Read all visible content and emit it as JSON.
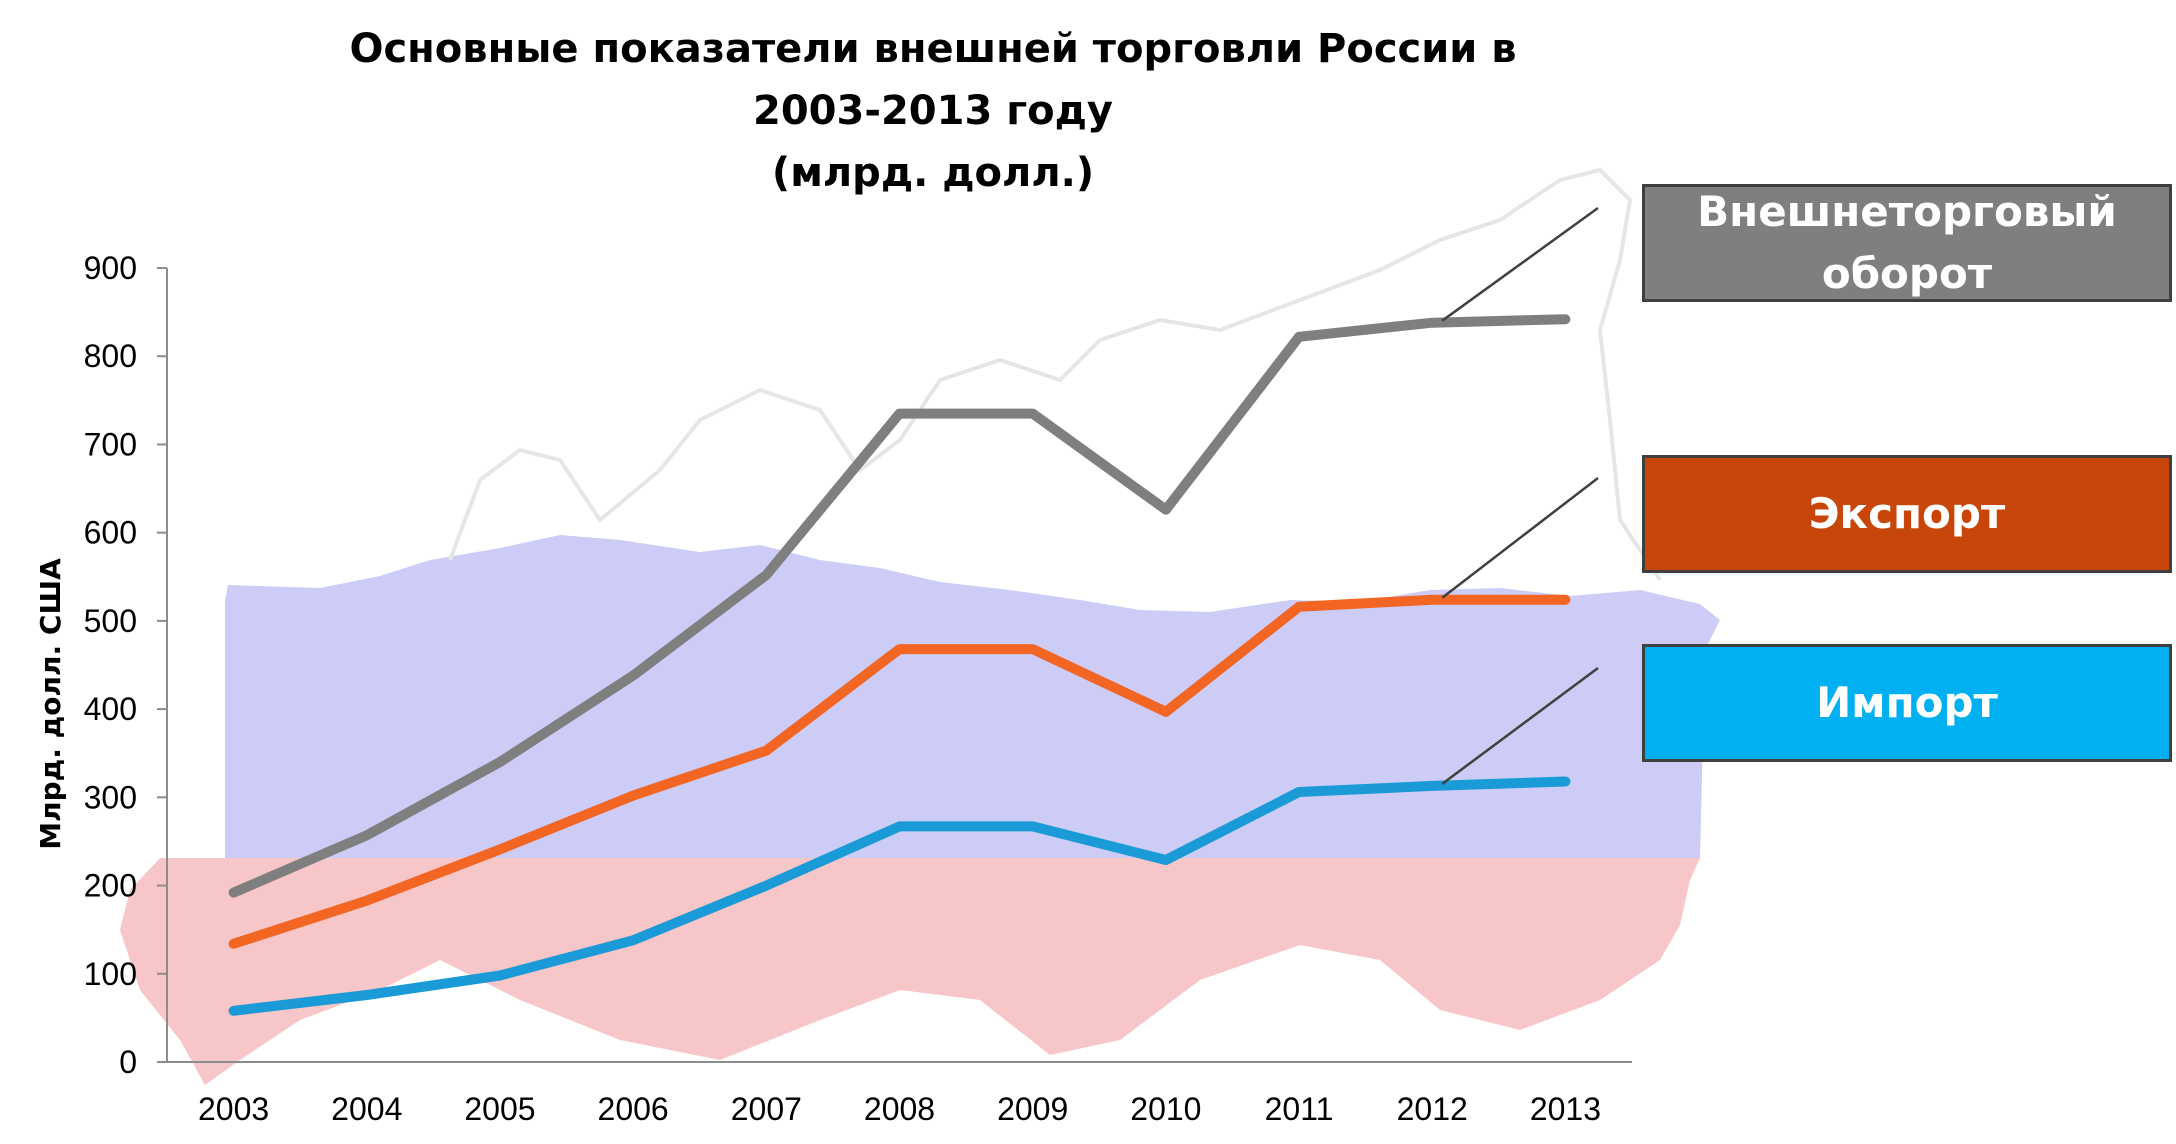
{
  "chart_data": {
    "type": "line",
    "title": [
      "Основные показатели внешней торговли России в",
      "2003-2013 году",
      "(млрд. долл.)"
    ],
    "ylabel": "Млрд. долл. США",
    "xlabel": "",
    "categories": [
      "2003",
      "2004",
      "2005",
      "2006",
      "2007",
      "2008",
      "2009",
      "2010",
      "2011",
      "2012",
      "2013"
    ],
    "ylim": [
      0,
      900
    ],
    "yticks": [
      0,
      100,
      200,
      300,
      400,
      500,
      600,
      700,
      800,
      900
    ],
    "grid": false,
    "legend_position": "right",
    "series": [
      {
        "name": "Внешнеторговый оборот",
        "legend_lines": [
          "Внешнеторговый",
          "оборот"
        ],
        "color": "#7f7f7f",
        "values": [
          192,
          257,
          340,
          438,
          552,
          735,
          735,
          626,
          822,
          838,
          842
        ]
      },
      {
        "name": "Экспорт",
        "legend_lines": [
          "Экспорт"
        ],
        "color": "#f26522",
        "values": [
          134,
          183,
          241,
          302,
          353,
          468,
          468,
          397,
          516,
          524,
          524
        ]
      },
      {
        "name": "Импорт",
        "legend_lines": [
          "Импорт"
        ],
        "color": "#1a9ad6",
        "values": [
          58,
          76,
          98,
          138,
          200,
          267,
          267,
          229,
          306,
          313,
          318
        ]
      }
    ],
    "legend_box_colors": [
      "#7f7f7f",
      "#c8460a",
      "#00b0f0"
    ]
  }
}
